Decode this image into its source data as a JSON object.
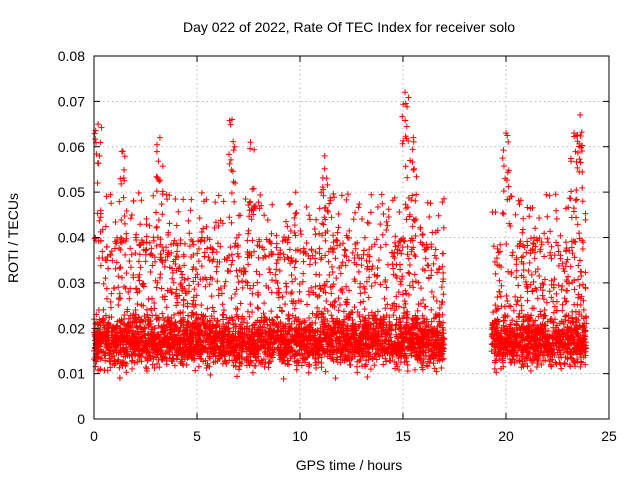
{
  "chart_data": {
    "type": "scatter",
    "title": "Day 022 of 2022, Rate Of TEC Index for receiver solo",
    "xlabel": "GPS time / hours",
    "ylabel": "ROTI / TECUs",
    "xlim": [
      0,
      25
    ],
    "ylim": [
      0,
      0.08
    ],
    "x_ticks": [
      0,
      5,
      10,
      15,
      20,
      25
    ],
    "x_tick_labels": [
      "0",
      "5",
      "10",
      "15",
      "20",
      "25"
    ],
    "y_ticks": [
      0,
      0.01,
      0.02,
      0.03,
      0.04,
      0.05,
      0.06,
      0.07,
      0.08
    ],
    "y_tick_labels": [
      "0",
      "0.01",
      "0.02",
      "0.03",
      "0.04",
      "0.05",
      "0.06",
      "0.07",
      "0.08"
    ],
    "grid": true,
    "marker": "+",
    "color": "#ff0000",
    "series": [
      {
        "name": "ROTI",
        "segments": [
          {
            "x_start": 0.0,
            "x_end": 17.0
          },
          {
            "x_start": 19.3,
            "x_end": 23.9
          }
        ],
        "typical_range": [
          0.005,
          0.035
        ],
        "peaks": [
          {
            "x": 0.2,
            "y": 0.065
          },
          {
            "x": 1.4,
            "y": 0.059
          },
          {
            "x": 3.2,
            "y": 0.062
          },
          {
            "x": 6.7,
            "y": 0.066
          },
          {
            "x": 7.6,
            "y": 0.061
          },
          {
            "x": 11.2,
            "y": 0.058
          },
          {
            "x": 15.1,
            "y": 0.072
          },
          {
            "x": 15.5,
            "y": 0.062
          },
          {
            "x": 20.0,
            "y": 0.063
          },
          {
            "x": 23.6,
            "y": 0.067
          },
          {
            "x": 23.3,
            "y": 0.063
          }
        ]
      }
    ]
  }
}
